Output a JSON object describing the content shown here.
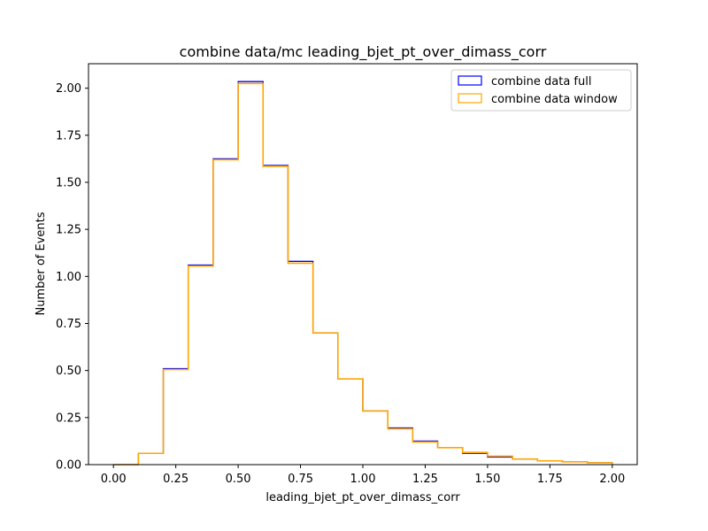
{
  "chart_data": {
    "type": "histogram",
    "title": "combine data/mc leading_bjet_pt_over_dimass_corr",
    "xlabel": "leading_bjet_pt_over_dimass_corr",
    "ylabel": "Number of Events",
    "xlim": [
      -0.1,
      2.1
    ],
    "ylim": [
      0,
      2.13
    ],
    "x_ticks": [
      0.0,
      0.25,
      0.5,
      0.75,
      1.0,
      1.25,
      1.5,
      1.75,
      2.0
    ],
    "x_tick_labels": [
      "0.00",
      "0.25",
      "0.50",
      "0.75",
      "1.00",
      "1.25",
      "1.50",
      "1.75",
      "2.00"
    ],
    "y_ticks": [
      0.0,
      0.25,
      0.5,
      0.75,
      1.0,
      1.25,
      1.5,
      1.75,
      2.0
    ],
    "y_tick_labels": [
      "0.00",
      "0.25",
      "0.50",
      "0.75",
      "1.00",
      "1.25",
      "1.50",
      "1.75",
      "2.00"
    ],
    "bin_edges": [
      0.0,
      0.1,
      0.2,
      0.3,
      0.4,
      0.5,
      0.6,
      0.7,
      0.8,
      0.9,
      1.0,
      1.1,
      1.2,
      1.3,
      1.4,
      1.5,
      1.6,
      1.7,
      1.8,
      1.9,
      2.0
    ],
    "grid": false,
    "legend_position": "top-right",
    "series": [
      {
        "name": "combine data full",
        "color": "#0000ff",
        "values": [
          0.0,
          0.06,
          0.51,
          1.06,
          1.625,
          2.035,
          1.59,
          1.08,
          0.7,
          0.455,
          0.285,
          0.195,
          0.125,
          0.09,
          0.06,
          0.04,
          0.03,
          0.02,
          0.015,
          0.01
        ]
      },
      {
        "name": "combine data window",
        "color": "#ffa500",
        "values": [
          0.0,
          0.06,
          0.505,
          1.055,
          1.62,
          2.025,
          1.585,
          1.07,
          0.7,
          0.455,
          0.285,
          0.19,
          0.12,
          0.09,
          0.065,
          0.045,
          0.03,
          0.02,
          0.015,
          0.01
        ]
      }
    ]
  }
}
